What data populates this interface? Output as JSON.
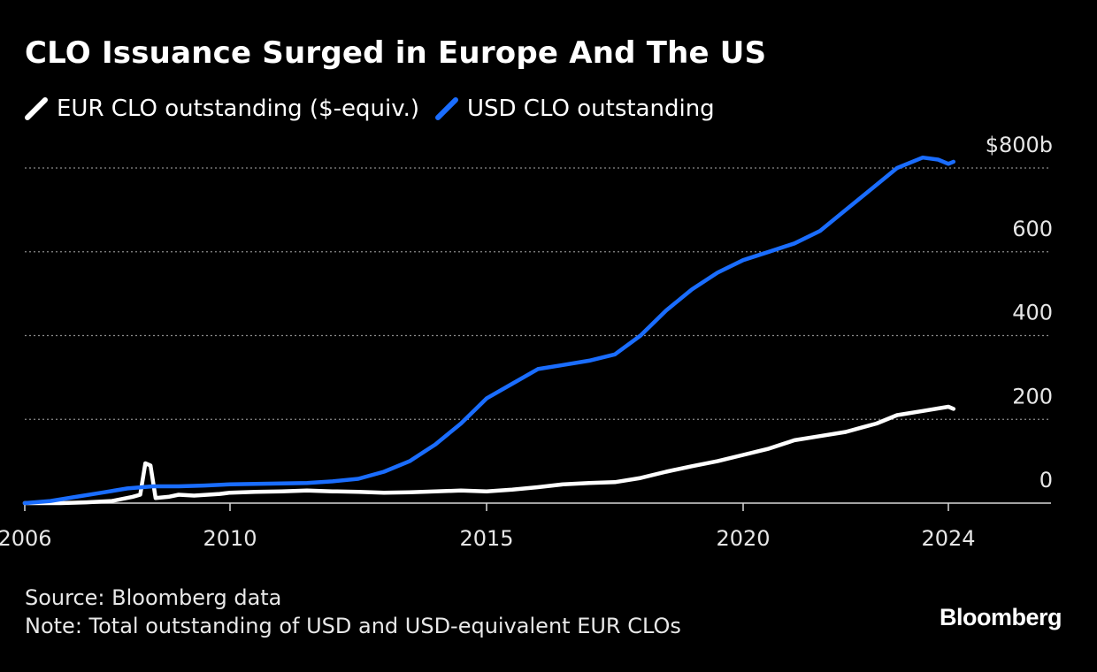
{
  "title": "CLO Issuance Surged in Europe And The US",
  "footer": {
    "source": "Source: Bloomberg data",
    "note": "Note: Total outstanding of USD and USD-equivalent EUR CLOs"
  },
  "brand": "Bloomberg",
  "chart_data": {
    "type": "line",
    "xlim": [
      2006,
      2026
    ],
    "ylim": [
      0,
      800
    ],
    "x_ticks": [
      2006,
      2010,
      2015,
      2020,
      2024
    ],
    "y_ticks": [
      {
        "value": 0,
        "label": "0"
      },
      {
        "value": 200,
        "label": "200"
      },
      {
        "value": 400,
        "label": "400"
      },
      {
        "value": 600,
        "label": "600"
      },
      {
        "value": 800,
        "label": "$800b"
      }
    ],
    "grid": "horizontal-dotted",
    "legend_position": "top-left",
    "series": [
      {
        "name": "EUR CLO outstanding ($-equiv.)",
        "color": "#ffffff",
        "points": [
          [
            2006.0,
            0
          ],
          [
            2006.7,
            0
          ],
          [
            2007.2,
            2
          ],
          [
            2007.7,
            5
          ],
          [
            2008.1,
            15
          ],
          [
            2008.25,
            20
          ],
          [
            2008.35,
            95
          ],
          [
            2008.45,
            90
          ],
          [
            2008.55,
            12
          ],
          [
            2008.8,
            15
          ],
          [
            2009.0,
            20
          ],
          [
            2009.3,
            18
          ],
          [
            2009.8,
            22
          ],
          [
            2010.0,
            25
          ],
          [
            2010.5,
            27
          ],
          [
            2011.0,
            28
          ],
          [
            2011.5,
            30
          ],
          [
            2012.0,
            28
          ],
          [
            2012.5,
            27
          ],
          [
            2013.0,
            25
          ],
          [
            2013.5,
            26
          ],
          [
            2014.0,
            28
          ],
          [
            2014.5,
            30
          ],
          [
            2015.0,
            28
          ],
          [
            2015.5,
            32
          ],
          [
            2016.0,
            38
          ],
          [
            2016.5,
            45
          ],
          [
            2017.0,
            48
          ],
          [
            2017.5,
            50
          ],
          [
            2018.0,
            60
          ],
          [
            2018.5,
            75
          ],
          [
            2019.0,
            88
          ],
          [
            2019.5,
            100
          ],
          [
            2020.0,
            115
          ],
          [
            2020.5,
            130
          ],
          [
            2021.0,
            150
          ],
          [
            2021.5,
            160
          ],
          [
            2022.0,
            170
          ],
          [
            2022.3,
            180
          ],
          [
            2022.6,
            190
          ],
          [
            2023.0,
            210
          ],
          [
            2023.5,
            220
          ],
          [
            2024.0,
            230
          ],
          [
            2024.1,
            225
          ]
        ]
      },
      {
        "name": "USD CLO outstanding",
        "color": "#1a6dff",
        "points": [
          [
            2006.0,
            0
          ],
          [
            2006.5,
            5
          ],
          [
            2007.0,
            15
          ],
          [
            2007.5,
            25
          ],
          [
            2008.0,
            35
          ],
          [
            2008.5,
            40
          ],
          [
            2009.0,
            40
          ],
          [
            2009.5,
            42
          ],
          [
            2010.0,
            45
          ],
          [
            2010.5,
            46
          ],
          [
            2011.0,
            47
          ],
          [
            2011.5,
            48
          ],
          [
            2012.0,
            52
          ],
          [
            2012.5,
            58
          ],
          [
            2013.0,
            75
          ],
          [
            2013.5,
            100
          ],
          [
            2014.0,
            140
          ],
          [
            2014.5,
            190
          ],
          [
            2015.0,
            250
          ],
          [
            2015.5,
            285
          ],
          [
            2016.0,
            320
          ],
          [
            2016.5,
            330
          ],
          [
            2017.0,
            340
          ],
          [
            2017.5,
            355
          ],
          [
            2018.0,
            400
          ],
          [
            2018.5,
            460
          ],
          [
            2019.0,
            510
          ],
          [
            2019.5,
            550
          ],
          [
            2020.0,
            580
          ],
          [
            2020.5,
            600
          ],
          [
            2021.0,
            620
          ],
          [
            2021.5,
            650
          ],
          [
            2022.0,
            700
          ],
          [
            2022.5,
            750
          ],
          [
            2023.0,
            800
          ],
          [
            2023.5,
            825
          ],
          [
            2023.8,
            820
          ],
          [
            2024.0,
            810
          ],
          [
            2024.1,
            815
          ]
        ]
      }
    ]
  }
}
